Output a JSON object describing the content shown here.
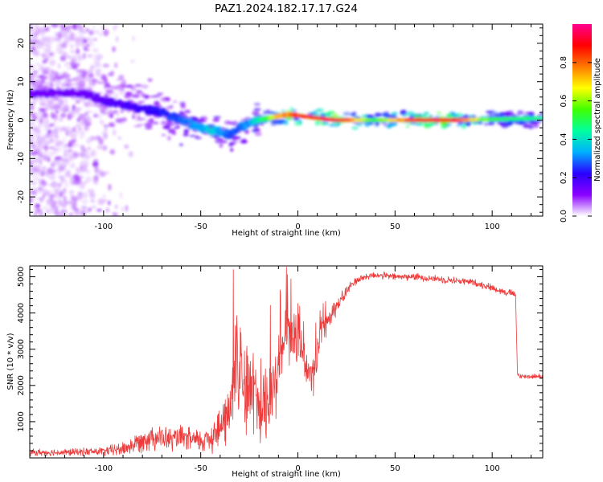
{
  "title": "PAZ1.2024.182.17.17.G24",
  "colors": {
    "snr_line": "#ee3a3a",
    "colormap": [
      "#ffffff",
      "#8a00ff",
      "#2a00ff",
      "#00b0ff",
      "#00ffa0",
      "#40ff00",
      "#ffff00",
      "#ff7a00",
      "#ff0000",
      "#ff0090"
    ]
  },
  "spectrogram": {
    "xlabel": "Height of straight line (km)",
    "ylabel": "Frequency (Hz)",
    "xlim": [
      -138,
      126
    ],
    "ylim": [
      -25,
      25
    ],
    "xticks": [
      -100,
      -50,
      0,
      50,
      100
    ],
    "yticks": [
      -20,
      -10,
      0,
      10,
      20
    ],
    "colorbar": {
      "label": "Normalized spectral amplitude",
      "range": [
        0,
        1
      ],
      "ticks": [
        0.0,
        0.2,
        0.4,
        0.6,
        0.8
      ]
    }
  },
  "chart_data": [
    {
      "type": "heatmap",
      "title": "PAZ1.2024.182.17.17.G24",
      "xlabel": "Height of straight line (km)",
      "ylabel": "Frequency (Hz)",
      "xlim": [
        -138,
        126
      ],
      "ylim": [
        -25,
        25
      ],
      "ridge": {
        "x": [
          -130,
          -120,
          -110,
          -100,
          -90,
          -80,
          -70,
          -60,
          -50,
          -45,
          -40,
          -35,
          -30,
          -25,
          -20,
          -15,
          -10,
          -5,
          0,
          10,
          20,
          40,
          60,
          80,
          100,
          126
        ],
        "freq_hz": [
          7,
          7,
          7,
          5,
          4,
          3,
          2,
          0,
          -2,
          -2.5,
          -3,
          -4,
          -2,
          -1,
          0,
          0.5,
          1,
          1.5,
          1.2,
          0.5,
          0,
          0,
          0,
          0,
          0.2,
          0.5
        ],
        "amplitude": [
          0.15,
          0.15,
          0.15,
          0.18,
          0.2,
          0.22,
          0.25,
          0.3,
          0.35,
          0.4,
          0.35,
          0.3,
          0.3,
          0.35,
          0.45,
          0.6,
          0.75,
          0.85,
          0.9,
          0.95,
          1.0,
          0.55,
          0.95,
          0.95,
          0.55,
          0.5
        ]
      },
      "colorbar": {
        "label": "Normalized spectral amplitude",
        "range": [
          0,
          1
        ],
        "ticks": [
          0.0,
          0.2,
          0.4,
          0.6,
          0.8
        ]
      }
    },
    {
      "type": "line",
      "xlabel": "Height of straight line (km)",
      "ylabel": "SNR (10 * v/v)",
      "xlim": [
        -138,
        126
      ],
      "ylim": [
        0,
        5300
      ],
      "xticks": [
        -100,
        -50,
        0,
        50,
        100
      ],
      "yticks": [
        1000,
        2000,
        3000,
        4000,
        5000
      ],
      "x": [
        -138,
        -120,
        -100,
        -90,
        -85,
        -80,
        -75,
        -70,
        -65,
        -60,
        -55,
        -50,
        -45,
        -40,
        -35,
        -32,
        -30,
        -28,
        -25,
        -22,
        -20,
        -18,
        -15,
        -12,
        -10,
        -8,
        -5,
        -3,
        0,
        3,
        5,
        8,
        10,
        12,
        15,
        18,
        20,
        23,
        25,
        28,
        30,
        35,
        40,
        50,
        60,
        70,
        80,
        90,
        100,
        105,
        110,
        112,
        113,
        115,
        120,
        126
      ],
      "values": [
        150,
        150,
        180,
        250,
        350,
        500,
        600,
        550,
        500,
        550,
        500,
        450,
        600,
        800,
        1300,
        2500,
        3300,
        2000,
        1800,
        1900,
        1500,
        1600,
        1500,
        2000,
        2800,
        3100,
        3500,
        3200,
        3300,
        2800,
        2400,
        2300,
        2700,
        3600,
        3800,
        4100,
        4200,
        4400,
        4600,
        4800,
        4900,
        5000,
        5050,
        5000,
        5000,
        4950,
        4900,
        4850,
        4700,
        4600,
        4550,
        4500,
        2300,
        2250,
        2250,
        2250
      ],
      "noise_band": [
        120,
        120,
        150,
        250,
        300,
        400,
        450,
        400,
        400,
        400,
        400,
        400,
        600,
        700,
        1200,
        2000,
        2200,
        1700,
        1600,
        1600,
        1500,
        1400,
        1400,
        1300,
        1200,
        1200,
        1100,
        1000,
        900,
        800,
        700,
        700,
        700,
        600,
        500,
        400,
        300,
        250,
        200,
        150,
        150,
        120,
        120,
        120,
        120,
        120,
        120,
        120,
        120,
        120,
        120,
        120,
        120,
        80,
        80,
        80
      ]
    }
  ]
}
